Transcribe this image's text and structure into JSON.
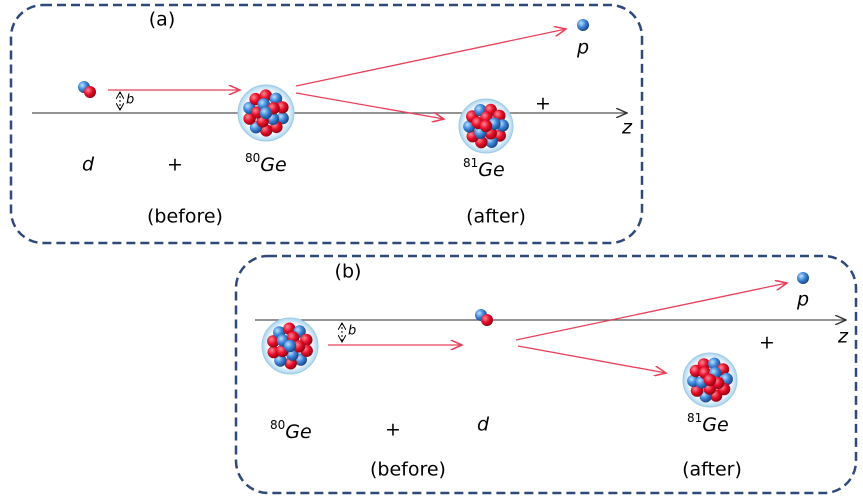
{
  "panels": [
    {
      "label": "(a)",
      "proton_label": "p",
      "impact_label": "b",
      "axis_label": "z",
      "projectile_label": "d",
      "plus_before": "+",
      "target": {
        "mass": "80",
        "symbol": "Ge"
      },
      "product": {
        "mass": "81",
        "symbol": "Ge"
      },
      "plus_after": "+",
      "before_label": "(before)",
      "after_label": "(after)"
    },
    {
      "label": "(b)",
      "proton_label": "p",
      "impact_label": "b",
      "axis_label": "z",
      "projectile_label": "d",
      "plus_before": "+",
      "target": {
        "mass": "80",
        "symbol": "Ge"
      },
      "product": {
        "mass": "81",
        "symbol": "Ge"
      },
      "plus_after": "+",
      "before_label": "(before)",
      "after_label": "(after)"
    }
  ]
}
